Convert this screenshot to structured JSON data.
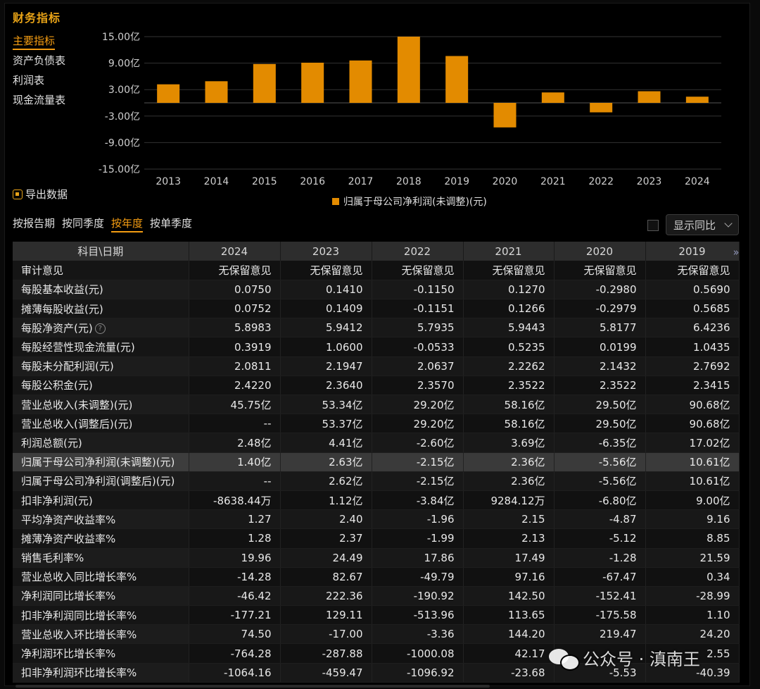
{
  "title": "财务指标",
  "side_nav": [
    "主要指标",
    "资产负债表",
    "利润表",
    "现金流量表"
  ],
  "export_label": "导出数据",
  "period_tabs": [
    "按报告期",
    "按同季度",
    "按年度",
    "按单季度"
  ],
  "show_yoy_label": "显示同比",
  "chart_data": {
    "type": "bar",
    "categories": [
      "2013",
      "2014",
      "2015",
      "2016",
      "2017",
      "2018",
      "2019",
      "2020",
      "2021",
      "2022",
      "2023",
      "2024"
    ],
    "series": [
      {
        "name": "归属于母公司净利润(未调整)(元)",
        "values": [
          4.2,
          4.9,
          8.8,
          9.1,
          9.6,
          15.0,
          10.61,
          -5.56,
          2.36,
          -2.15,
          2.63,
          1.4
        ]
      }
    ],
    "ylim": [
      -15,
      15
    ],
    "yticks": [
      "15.00亿",
      "9.00亿",
      "3.00亿",
      "-3.00亿",
      "-9.00亿",
      "-15.00亿"
    ],
    "ytick_values": [
      15,
      9,
      3,
      -3,
      -9,
      -15
    ],
    "color": "#e38b00"
  },
  "table": {
    "headers": [
      "科目\\日期",
      "2024",
      "2023",
      "2022",
      "2021",
      "2020",
      "2019"
    ],
    "rows": [
      [
        "审计意见",
        "无保留意见",
        "无保留意见",
        "无保留意见",
        "无保留意见",
        "无保留意见",
        "无保留意见"
      ],
      [
        "每股基本收益(元)",
        "0.0750",
        "0.1410",
        "-0.1150",
        "0.1270",
        "-0.2980",
        "0.5690"
      ],
      [
        "摊薄每股收益(元)",
        "0.0752",
        "0.1409",
        "-0.1151",
        "0.1266",
        "-0.2979",
        "0.5685"
      ],
      [
        "每股净资产(元)",
        "5.8983",
        "5.9412",
        "5.7935",
        "5.9443",
        "5.8177",
        "6.4236"
      ],
      [
        "每股经营性现金流量(元)",
        "0.3919",
        "1.0600",
        "-0.0533",
        "0.5235",
        "0.0199",
        "1.0435"
      ],
      [
        "每股未分配利润(元)",
        "2.0811",
        "2.1947",
        "2.0637",
        "2.2262",
        "2.1432",
        "2.7692"
      ],
      [
        "每股公积金(元)",
        "2.4220",
        "2.3640",
        "2.3570",
        "2.3522",
        "2.3522",
        "2.3415"
      ],
      [
        "营业总收入(未调整)(元)",
        "45.75亿",
        "53.34亿",
        "29.20亿",
        "58.16亿",
        "29.50亿",
        "90.68亿"
      ],
      [
        "营业总收入(调整后)(元)",
        "--",
        "53.37亿",
        "29.20亿",
        "58.16亿",
        "29.50亿",
        "90.68亿"
      ],
      [
        "利润总额(元)",
        "2.48亿",
        "4.41亿",
        "-2.60亿",
        "3.69亿",
        "-6.35亿",
        "17.02亿"
      ],
      [
        "归属于母公司净利润(未调整)(元)",
        "1.40亿",
        "2.63亿",
        "-2.15亿",
        "2.36亿",
        "-5.56亿",
        "10.61亿"
      ],
      [
        "归属于母公司净利润(调整后)(元)",
        "--",
        "2.62亿",
        "-2.15亿",
        "2.36亿",
        "-5.56亿",
        "10.61亿"
      ],
      [
        "扣非净利润(元)",
        "-8638.44万",
        "1.12亿",
        "-3.84亿",
        "9284.12万",
        "-6.80亿",
        "9.00亿"
      ],
      [
        "平均净资产收益率%",
        "1.27",
        "2.40",
        "-1.96",
        "2.15",
        "-4.87",
        "9.16"
      ],
      [
        "摊薄净资产收益率%",
        "1.28",
        "2.37",
        "-1.99",
        "2.13",
        "-5.12",
        "8.85"
      ],
      [
        "销售毛利率%",
        "19.96",
        "24.49",
        "17.86",
        "17.49",
        "-1.28",
        "21.59"
      ],
      [
        "营业总收入同比增长率%",
        "-14.28",
        "82.67",
        "-49.79",
        "97.16",
        "-67.47",
        "0.34"
      ],
      [
        "净利润同比增长率%",
        "-46.42",
        "222.36",
        "-190.92",
        "142.50",
        "-152.41",
        "-28.99"
      ],
      [
        "扣非净利润同比增长率%",
        "-177.21",
        "129.11",
        "-513.96",
        "113.65",
        "-175.58",
        "1.10"
      ],
      [
        "营业总收入环比增长率%",
        "74.50",
        "-17.00",
        "-3.36",
        "144.20",
        "219.47",
        "24.20"
      ],
      [
        "净利润环比增长率%",
        "-764.28",
        "-287.88",
        "-1000.08",
        "42.17",
        "",
        "2.55"
      ],
      [
        "扣非净利润环比增长率%",
        "-1064.16",
        "-459.47",
        "-1096.92",
        "-23.68",
        "-5.53",
        "-40.39"
      ]
    ],
    "highlight_row": 10
  },
  "watermark": "公众号 · 滇南王",
  "icons": {
    "export": "export-icon",
    "help": "help-circle-icon",
    "more": "double-chevron-right-icon",
    "select": "chevron-down-icon"
  }
}
